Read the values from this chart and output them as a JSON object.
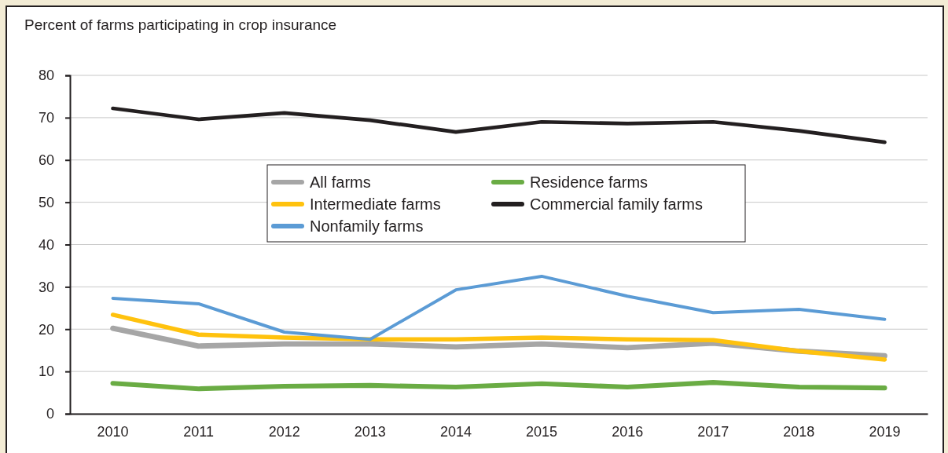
{
  "chart_data": {
    "type": "line",
    "ylabel": "Percent of farms participating in crop insurance",
    "categories": [
      "2010",
      "2011",
      "2012",
      "2013",
      "2014",
      "2015",
      "2016",
      "2017",
      "2018",
      "2019"
    ],
    "series": [
      {
        "name": "All farms",
        "color": "#a6a6a6",
        "values": [
          20.2,
          16.0,
          16.5,
          16.5,
          15.8,
          16.5,
          15.6,
          16.7,
          14.8,
          13.7
        ]
      },
      {
        "name": "Residence farms",
        "color": "#6aac44",
        "values": [
          7.2,
          5.9,
          6.5,
          6.7,
          6.3,
          7.1,
          6.3,
          7.4,
          6.3,
          6.1
        ]
      },
      {
        "name": "Intermediate farms",
        "color": "#ffc20e",
        "values": [
          23.4,
          18.7,
          18.0,
          17.6,
          17.6,
          18.0,
          17.6,
          17.4,
          14.8,
          12.8
        ]
      },
      {
        "name": "Commercial family farms",
        "color": "#231f20",
        "values": [
          72.2,
          69.6,
          71.1,
          69.4,
          66.6,
          69.0,
          68.6,
          69.0,
          66.9,
          64.2
        ]
      },
      {
        "name": "Nonfamily farms",
        "color": "#5b9bd5",
        "values": [
          27.3,
          26.0,
          19.3,
          17.6,
          29.3,
          32.5,
          27.8,
          23.9,
          24.7,
          22.3
        ]
      }
    ],
    "ylim": [
      0,
      80
    ],
    "yticks": [
      0,
      10,
      20,
      30,
      40,
      50,
      60,
      70,
      80
    ],
    "grid": "y",
    "legend": "top",
    "marker": "none",
    "line_style": "solid"
  }
}
